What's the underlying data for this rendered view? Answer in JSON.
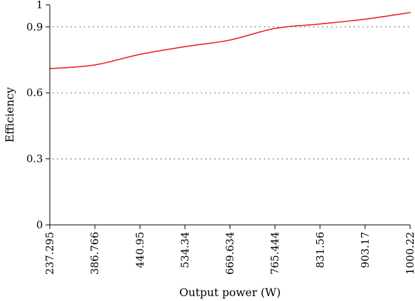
{
  "chart_data": {
    "type": "line",
    "title": "",
    "xlabel": "Output power (W)",
    "ylabel": "Efficiency",
    "x": [
      "237.295",
      "386.766",
      "440.95",
      "534.34",
      "669.634",
      "765.444",
      "831.56",
      "903.17",
      "1000.22"
    ],
    "y_ticks": [
      "0",
      "0.3",
      "0.6",
      "0.9",
      "1"
    ],
    "ylim": [
      0,
      1
    ],
    "grid": "horizontal-dotted",
    "series": [
      {
        "color": "#e8231f",
        "values": [
          0.71,
          0.727,
          0.775,
          0.81,
          0.84,
          0.893,
          0.913,
          0.935,
          0.965
        ]
      }
    ]
  }
}
